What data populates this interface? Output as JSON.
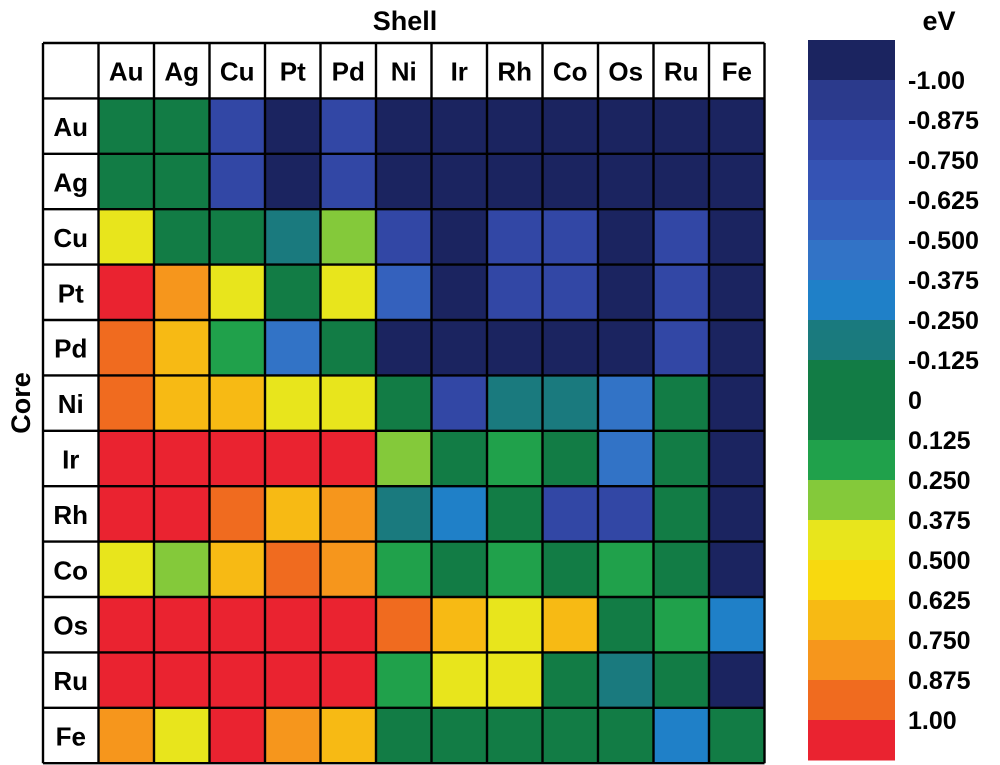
{
  "chart_data": {
    "type": "heatmap",
    "title": "Shell",
    "xlabel": "Shell",
    "ylabel": "Core",
    "colorbar_label": "eV",
    "x_categories": [
      "Au",
      "Ag",
      "Cu",
      "Pt",
      "Pd",
      "Ni",
      "Ir",
      "Rh",
      "Co",
      "Os",
      "Ru",
      "Fe"
    ],
    "y_categories": [
      "Au",
      "Ag",
      "Cu",
      "Pt",
      "Pd",
      "Ni",
      "Ir",
      "Rh",
      "Co",
      "Os",
      "Ru",
      "Fe"
    ],
    "values": [
      [
        0,
        0,
        -0.75,
        -1.0,
        -0.75,
        -1.0,
        -1.0,
        -1.0,
        -1.0,
        -1.0,
        -1.0,
        -1.0
      ],
      [
        0,
        0,
        -0.75,
        -1.0,
        -0.75,
        -1.0,
        -1.0,
        -1.0,
        -1.0,
        -1.0,
        -1.0,
        -1.0
      ],
      [
        0.5,
        0,
        0,
        -0.125,
        0.375,
        -0.75,
        -1.0,
        -0.75,
        -0.75,
        -1.0,
        -0.75,
        -1.0
      ],
      [
        1.0,
        0.75,
        0.5,
        0,
        0.5,
        -0.625,
        -1.0,
        -0.75,
        -0.75,
        -1.0,
        -0.75,
        -1.0
      ],
      [
        0.875,
        0.625,
        0.25,
        -0.5,
        0,
        -1.0,
        -1.0,
        -1.0,
        -1.0,
        -1.0,
        -0.75,
        -1.0
      ],
      [
        0.875,
        0.625,
        0.625,
        0.5,
        0.5,
        0,
        -0.75,
        -0.125,
        -0.125,
        -0.5,
        0,
        -1.0
      ],
      [
        1.0,
        1.0,
        1.0,
        1.0,
        1.0,
        0.375,
        0,
        0.25,
        0,
        -0.5,
        0,
        -1.0
      ],
      [
        1.0,
        1.0,
        0.875,
        0.625,
        0.75,
        -0.125,
        -0.375,
        0,
        -0.75,
        -0.75,
        0,
        -1.0
      ],
      [
        0.5,
        0.375,
        0.625,
        0.875,
        0.75,
        0.25,
        0,
        0.25,
        0,
        0.25,
        0,
        -1.0
      ],
      [
        1.0,
        1.0,
        1.0,
        1.0,
        1.0,
        0.875,
        0.625,
        0.5,
        0.625,
        0,
        0.25,
        -0.375
      ],
      [
        1.0,
        1.0,
        1.0,
        1.0,
        1.0,
        0.25,
        0.5,
        0.5,
        0,
        -0.125,
        0,
        -1.0
      ],
      [
        0.75,
        0.5,
        1.0,
        0.75,
        0.625,
        0,
        0,
        0,
        0,
        0,
        -0.375,
        0
      ]
    ],
    "colorbar": {
      "levels": [
        -1.125,
        -1.0,
        -0.875,
        -0.75,
        -0.625,
        -0.5,
        -0.375,
        -0.25,
        -0.125,
        0,
        0.125,
        0.25,
        0.375,
        0.5,
        0.625,
        0.75,
        0.875,
        1.0
      ],
      "colors": [
        "#1b2460",
        "#2b3a8c",
        "#3247a5",
        "#3553b4",
        "#3461bd",
        "#3273c6",
        "#1f80c8",
        "#1a7a7e",
        "#127c45",
        "#137d44",
        "#20a14b",
        "#84c93a",
        "#e8e51c",
        "#f8d90f",
        "#f7ba14",
        "#f6961c",
        "#f06b1f",
        "#ea2330"
      ],
      "tick_labels": [
        "-1.00",
        "-0.875",
        "-0.750",
        "-0.625",
        "-0.500",
        "-0.375",
        "-0.250",
        "-0.125",
        "0",
        "0.125",
        "0.250",
        "0.375",
        "0.500",
        "0.625",
        "0.750",
        "0.875",
        "1.00"
      ]
    },
    "cell_colors": {
      "-1.0": "#1b2460",
      "-0.75": "#3247a5",
      "-0.625": "#3461bd",
      "-0.5": "#3273c6",
      "-0.375": "#1f80c8",
      "-0.125": "#1a7a7e",
      "0": "#127c45",
      "0.25": "#20a14b",
      "0.375": "#84c93a",
      "0.5": "#e8e51c",
      "0.625": "#f7ba14",
      "0.75": "#f6961c",
      "0.875": "#f06b1f",
      "1.0": "#ea2330"
    },
    "grid": true
  }
}
